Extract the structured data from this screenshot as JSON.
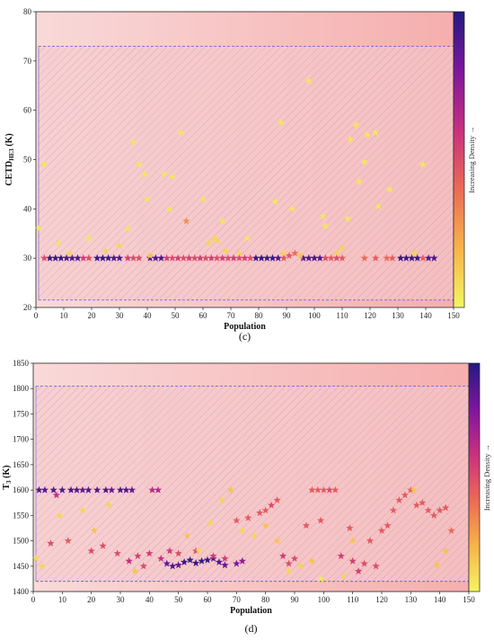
{
  "chart_data": [
    {
      "type": "scatter",
      "panel_caption": "(c)",
      "xlabel": "Population",
      "ylabel_main": "CETD",
      "ylabel_sub": "HE3",
      "ylabel_unit": "(K)",
      "xlim": [
        0,
        150
      ],
      "ylim": [
        20,
        80
      ],
      "xticks": [
        "0",
        "10",
        "20",
        "30",
        "40",
        "50",
        "60",
        "70",
        "80",
        "90",
        "100",
        "110",
        "120",
        "130",
        "140",
        "150"
      ],
      "yticks": [
        "20",
        "30",
        "40",
        "50",
        "60",
        "70",
        "80"
      ],
      "colorbar_label": "Increasing Density →",
      "colors": {
        "high_density": "#2d1b8e",
        "mid": "#b0249a",
        "low": "#f2f25e",
        "band": "#f4b3b3"
      },
      "hatch_region": {
        "x": [
          0,
          150
        ],
        "y": [
          21.5,
          73
        ]
      },
      "series": [
        {
          "x": [
            5,
            7,
            9,
            11,
            13,
            15,
            22,
            24,
            26,
            28,
            30,
            41,
            43,
            45,
            79,
            81,
            83,
            85,
            87,
            96,
            98,
            100,
            102,
            131,
            133,
            135,
            137,
            141,
            143
          ],
          "y": [
            30,
            30,
            30,
            30,
            30,
            30,
            30,
            30,
            30,
            30,
            30,
            30,
            30,
            30,
            30,
            30,
            30,
            30,
            30,
            30,
            30,
            30,
            30,
            30,
            30,
            30,
            30,
            30,
            30
          ],
          "density": [
            0.95,
            0.95,
            0.95,
            0.9,
            0.9,
            0.9,
            0.95,
            0.95,
            0.95,
            0.9,
            0.9,
            0.9,
            0.9,
            0.9,
            0.95,
            0.95,
            0.95,
            0.95,
            0.9,
            0.9,
            0.9,
            0.9,
            0.9,
            0.95,
            0.95,
            0.95,
            0.95,
            0.9,
            0.9
          ]
        },
        {
          "x": [
            3,
            17,
            19,
            33,
            35,
            37,
            47,
            49,
            51,
            53,
            55,
            57,
            59,
            61,
            63,
            65,
            67,
            69,
            71,
            73,
            75,
            77,
            89,
            91,
            93,
            104,
            106,
            108,
            110,
            118,
            122,
            126,
            128,
            139
          ],
          "y": [
            30,
            30,
            30,
            30,
            30,
            30,
            30,
            30,
            30,
            30,
            30,
            30,
            30,
            30,
            30,
            30,
            30,
            30,
            30,
            30,
            30,
            30,
            30,
            30.5,
            31,
            30,
            30,
            30,
            30,
            30,
            30,
            30,
            30,
            30
          ],
          "density": [
            0.5,
            0.55,
            0.5,
            0.55,
            0.5,
            0.5,
            0.55,
            0.5,
            0.55,
            0.5,
            0.55,
            0.5,
            0.55,
            0.5,
            0.55,
            0.5,
            0.55,
            0.5,
            0.55,
            0.5,
            0.55,
            0.5,
            0.45,
            0.45,
            0.4,
            0.5,
            0.45,
            0.5,
            0.45,
            0.4,
            0.45,
            0.4,
            0.45,
            0.45
          ]
        },
        {
          "x": [
            1,
            3,
            8,
            12,
            19,
            25,
            30,
            33,
            35,
            37,
            39,
            40,
            41,
            46,
            48,
            49,
            52,
            54,
            60,
            62,
            64,
            65,
            67,
            68,
            73,
            76,
            86,
            88,
            89,
            92,
            95,
            98,
            103,
            104,
            108,
            110,
            112,
            113,
            115,
            116,
            118,
            119,
            122,
            123,
            127,
            136,
            139
          ],
          "y": [
            36,
            49,
            33,
            31,
            34,
            31.5,
            32.5,
            36,
            53.5,
            49,
            47,
            42,
            30.5,
            47,
            40,
            46.5,
            55.5,
            37.5,
            42,
            33,
            34,
            33.5,
            37.5,
            31.5,
            31,
            34,
            41.5,
            57.5,
            31,
            40,
            30.5,
            66,
            38.5,
            36.5,
            31,
            32,
            38,
            54,
            57,
            45.5,
            49.5,
            55,
            55.5,
            40.5,
            44,
            31,
            49
          ],
          "density": [
            0.05,
            0.05,
            0.05,
            0.1,
            0.05,
            0.1,
            0.1,
            0.05,
            0.05,
            0.05,
            0.05,
            0.05,
            0.15,
            0.05,
            0.05,
            0.05,
            0.05,
            0.3,
            0.05,
            0.1,
            0.1,
            0.1,
            0.05,
            0.1,
            0.1,
            0.05,
            0.05,
            0.05,
            0.1,
            0.05,
            0.15,
            0.05,
            0.05,
            0.05,
            0.1,
            0.1,
            0.05,
            0.05,
            0.05,
            0.05,
            0.05,
            0.05,
            0.05,
            0.05,
            0.05,
            0.1,
            0.05
          ]
        }
      ]
    },
    {
      "type": "scatter",
      "panel_caption": "(d)",
      "xlabel": "Population",
      "ylabel_main": "T",
      "ylabel_sub": "3",
      "ylabel_unit": "(K)",
      "xlim": [
        0,
        150
      ],
      "ylim": [
        1400,
        1850
      ],
      "xticks": [
        "0",
        "10",
        "20",
        "30",
        "40",
        "50",
        "60",
        "70",
        "80",
        "90",
        "100",
        "110",
        "120",
        "130",
        "140",
        "150"
      ],
      "yticks": [
        "1400",
        "1450",
        "1500",
        "1550",
        "1600",
        "1650",
        "1700",
        "1750",
        "1800",
        "1850"
      ],
      "colorbar_label": "Increasing Density →",
      "colors": {
        "high_density": "#2d1b8e",
        "mid": "#b0249a",
        "low": "#f2f25e",
        "band": "#f4b3b3"
      },
      "hatch_region": {
        "x": [
          0,
          150
        ],
        "y": [
          1420,
          1805
        ]
      },
      "series": [
        {
          "x": [
            2,
            4,
            7,
            10,
            13,
            15,
            17,
            19,
            22,
            25,
            27,
            30,
            32,
            34,
            41,
            43,
            46,
            48,
            50,
            52,
            54,
            56,
            58,
            60,
            62,
            64,
            66,
            70,
            72
          ],
          "y": [
            1600,
            1600,
            1600,
            1600,
            1600,
            1600,
            1600,
            1600,
            1600,
            1600,
            1600,
            1600,
            1600,
            1600,
            1600,
            1600,
            1455,
            1450,
            1452,
            1458,
            1462,
            1456,
            1460,
            1462,
            1465,
            1458,
            1452,
            1455,
            1460
          ],
          "density": [
            0.9,
            0.9,
            0.9,
            0.9,
            0.9,
            0.9,
            0.85,
            0.9,
            0.9,
            0.9,
            0.85,
            0.9,
            0.9,
            0.85,
            0.65,
            0.65,
            0.85,
            0.9,
            0.85,
            0.95,
            0.95,
            0.95,
            0.95,
            0.95,
            0.9,
            0.9,
            0.85,
            0.8,
            0.75
          ]
        },
        {
          "x": [
            6,
            8,
            12,
            20,
            24,
            29,
            33,
            36,
            38,
            40,
            44,
            47,
            50,
            56,
            62,
            66,
            70,
            74,
            78,
            80,
            82,
            84,
            86,
            88,
            90,
            94,
            96,
            98,
            100,
            102,
            104,
            106,
            110,
            112,
            114,
            116,
            118,
            120,
            122,
            124,
            126,
            128,
            130,
            132,
            134,
            136,
            138,
            140,
            142,
            144,
            109,
            99
          ],
          "y": [
            1495,
            1590,
            1500,
            1480,
            1490,
            1475,
            1460,
            1470,
            1450,
            1475,
            1465,
            1480,
            1475,
            1480,
            1470,
            1465,
            1540,
            1545,
            1555,
            1560,
            1570,
            1580,
            1470,
            1455,
            1465,
            1530,
            1600,
            1600,
            1600,
            1600,
            1600,
            1470,
            1460,
            1440,
            1455,
            1500,
            1450,
            1520,
            1530,
            1560,
            1580,
            1590,
            1600,
            1570,
            1575,
            1560,
            1550,
            1560,
            1565,
            1520,
            1525,
            1540
          ],
          "density": [
            0.5,
            0.6,
            0.45,
            0.5,
            0.5,
            0.5,
            0.6,
            0.55,
            0.5,
            0.55,
            0.6,
            0.55,
            0.5,
            0.5,
            0.55,
            0.55,
            0.45,
            0.45,
            0.45,
            0.45,
            0.5,
            0.45,
            0.55,
            0.5,
            0.5,
            0.45,
            0.45,
            0.45,
            0.45,
            0.5,
            0.45,
            0.55,
            0.55,
            0.55,
            0.5,
            0.45,
            0.5,
            0.45,
            0.45,
            0.45,
            0.45,
            0.45,
            0.45,
            0.45,
            0.45,
            0.45,
            0.45,
            0.45,
            0.45,
            0.4,
            0.45,
            0.45
          ]
        },
        {
          "x": [
            1,
            3,
            9,
            17,
            21,
            26,
            35,
            53,
            57,
            61,
            65,
            68,
            72,
            76,
            80,
            84,
            88,
            92,
            96,
            99,
            107,
            110,
            131,
            139,
            142
          ],
          "y": [
            1465,
            1450,
            1550,
            1560,
            1520,
            1570,
            1440,
            1510,
            1480,
            1535,
            1580,
            1600,
            1520,
            1510,
            1530,
            1500,
            1440,
            1450,
            1460,
            1425,
            1430,
            1500,
            1600,
            1452,
            1480
          ],
          "density": [
            0.1,
            0.1,
            0.1,
            0.1,
            0.15,
            0.1,
            0.15,
            0.15,
            0.1,
            0.1,
            0.1,
            0.15,
            0.1,
            0.1,
            0.15,
            0.15,
            0.1,
            0.1,
            0.15,
            0.05,
            0.1,
            0.15,
            0.15,
            0.15,
            0.15
          ]
        }
      ]
    }
  ]
}
